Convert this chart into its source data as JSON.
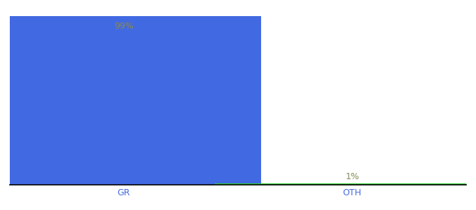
{
  "categories": [
    "GR",
    "OTH"
  ],
  "values": [
    99,
    1
  ],
  "bar_colors": [
    "#4169E1",
    "#32CD32"
  ],
  "bar_labels": [
    "99%",
    "1%"
  ],
  "label_color": "#888855",
  "xlabel": "",
  "ylabel": "",
  "ylim": [
    0,
    100
  ],
  "background_color": "#ffffff",
  "label_fontsize": 9,
  "tick_fontsize": 9,
  "tick_color": "#4169E1",
  "bar_width": 0.6,
  "x_positions": [
    0.25,
    0.75
  ]
}
